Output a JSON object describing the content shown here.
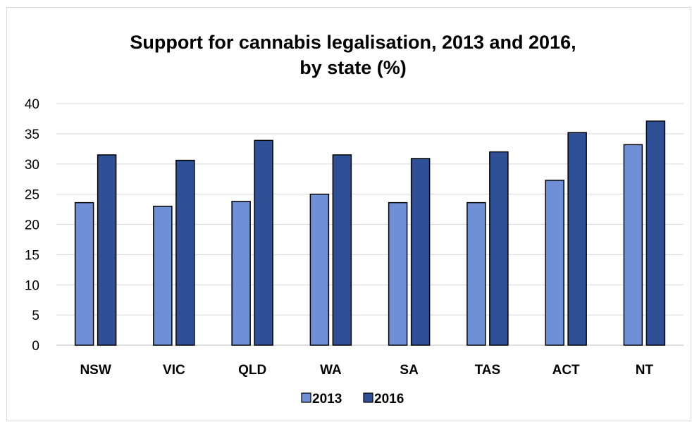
{
  "chart_data": {
    "type": "bar",
    "title_lines": [
      "Support for cannabis legalisation, 2013 and 2016,",
      "by state (%)"
    ],
    "xlabel": "",
    "ylabel": "",
    "categories": [
      "NSW",
      "VIC",
      "QLD",
      "WA",
      "SA",
      "TAS",
      "ACT",
      "NT"
    ],
    "series": [
      {
        "name": "2013",
        "color": "#6f8fd6",
        "values": [
          23.6,
          23.0,
          23.8,
          25.0,
          23.6,
          23.6,
          27.3,
          33.2
        ]
      },
      {
        "name": "2016",
        "color": "#2f5096",
        "values": [
          31.5,
          30.6,
          33.9,
          31.5,
          30.9,
          32.0,
          35.2,
          37.1
        ]
      }
    ],
    "ylim": [
      0,
      40
    ],
    "yticks": [
      0,
      5,
      10,
      15,
      20,
      25,
      30,
      35,
      40
    ],
    "grid": true,
    "legend_position": "bottom"
  }
}
